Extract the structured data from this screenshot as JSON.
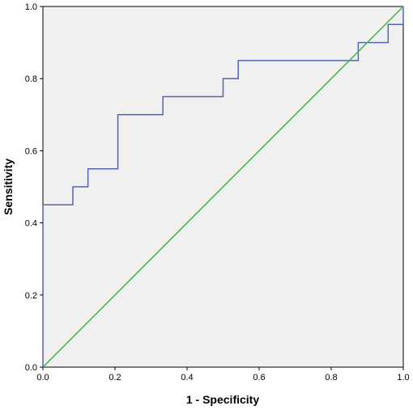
{
  "chart_data": {
    "type": "line",
    "title": "",
    "xlabel": "1 - Specificity",
    "ylabel": "Sensitivity",
    "xlim": [
      0.0,
      1.0
    ],
    "ylim": [
      0.0,
      1.0
    ],
    "xticks": [
      "0.0",
      "0.2",
      "0.4",
      "0.6",
      "0.8",
      "1.0"
    ],
    "yticks": [
      "0.0",
      "0.2",
      "0.4",
      "0.6",
      "0.8",
      "1.0"
    ],
    "grid": false,
    "legend": "none",
    "series": [
      {
        "color": "#5664b3",
        "style": "step",
        "x": [
          0.0,
          0.0,
          0.083,
          0.083,
          0.125,
          0.125,
          0.208,
          0.208,
          0.333,
          0.333,
          0.5,
          0.5,
          0.542,
          0.542,
          0.875,
          0.875,
          0.958,
          0.958,
          1.0,
          1.0
        ],
        "y": [
          0.0,
          0.45,
          0.45,
          0.5,
          0.5,
          0.55,
          0.55,
          0.7,
          0.7,
          0.75,
          0.75,
          0.8,
          0.8,
          0.85,
          0.85,
          0.9,
          0.9,
          0.95,
          0.95,
          1.0
        ]
      },
      {
        "color": "#3cb44b",
        "style": "line",
        "x": [
          0.0,
          1.0
        ],
        "y": [
          0.0,
          1.0
        ]
      }
    ],
    "plot_background": "#f0f0f0"
  }
}
